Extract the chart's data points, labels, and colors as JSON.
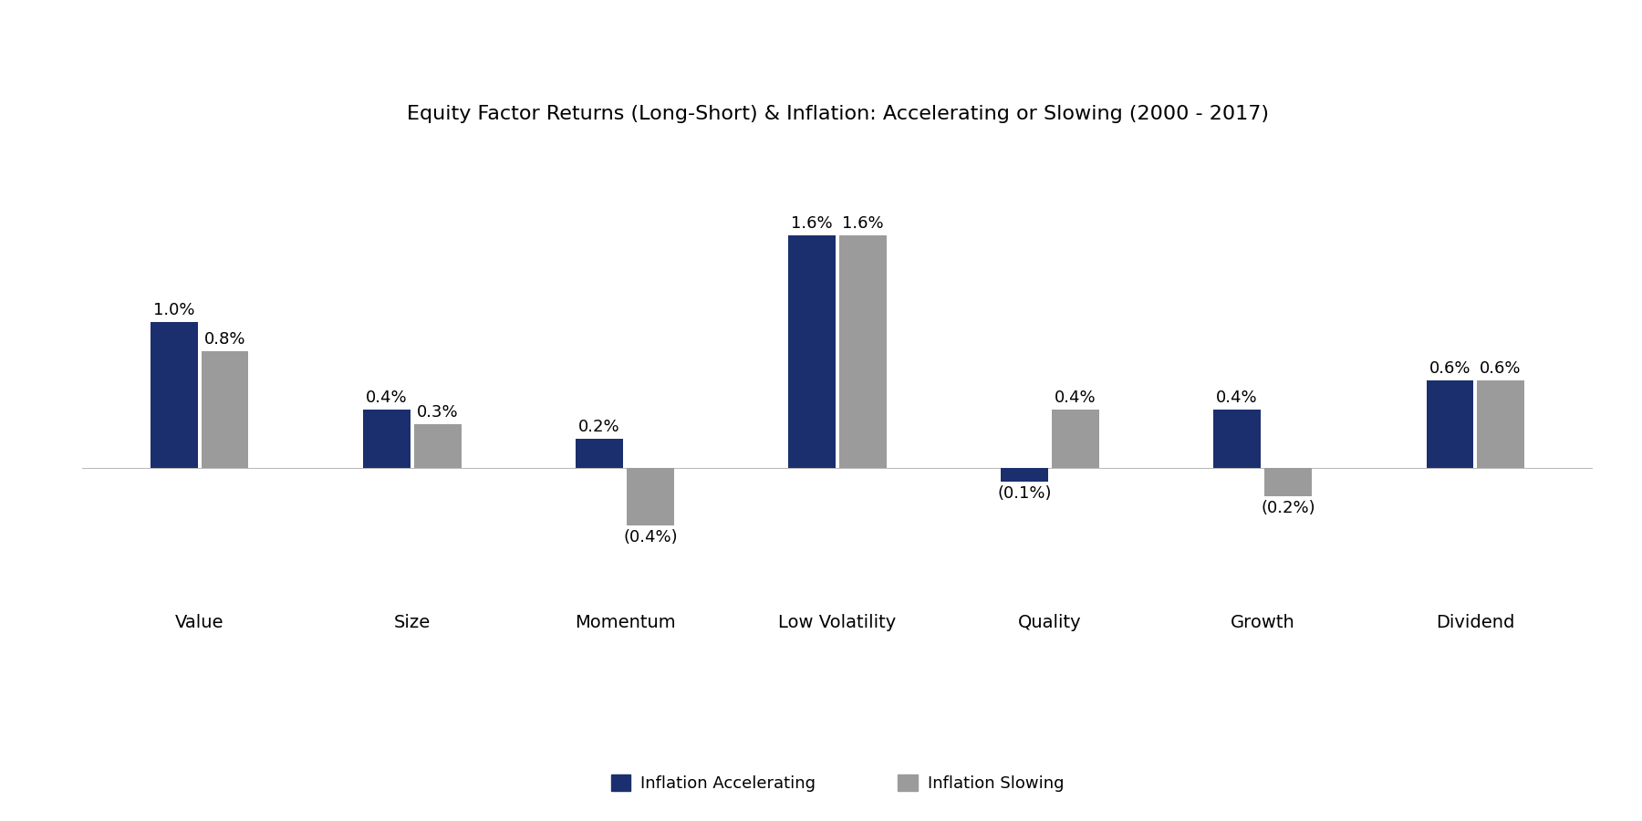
{
  "title": "Equity Factor Returns (Long-Short) & Inflation: Accelerating or Slowing (2000 - 2017)",
  "categories": [
    "Value",
    "Size",
    "Momentum",
    "Low Volatility",
    "Quality",
    "Growth",
    "Dividend"
  ],
  "accelerating": [
    1.0,
    0.4,
    0.2,
    1.6,
    -0.1,
    0.4,
    0.6
  ],
  "slowing": [
    0.8,
    0.3,
    -0.4,
    1.6,
    0.4,
    -0.2,
    0.6
  ],
  "color_accelerating": "#1B2F6E",
  "color_slowing": "#9B9B9B",
  "legend_labels": [
    "Inflation Accelerating",
    "Inflation Slowing"
  ],
  "bar_width": 0.22,
  "ylim": [
    -0.85,
    2.2
  ],
  "title_fontsize": 16,
  "label_fontsize": 13,
  "tick_fontsize": 14,
  "legend_fontsize": 13,
  "background_color": "#FFFFFF"
}
